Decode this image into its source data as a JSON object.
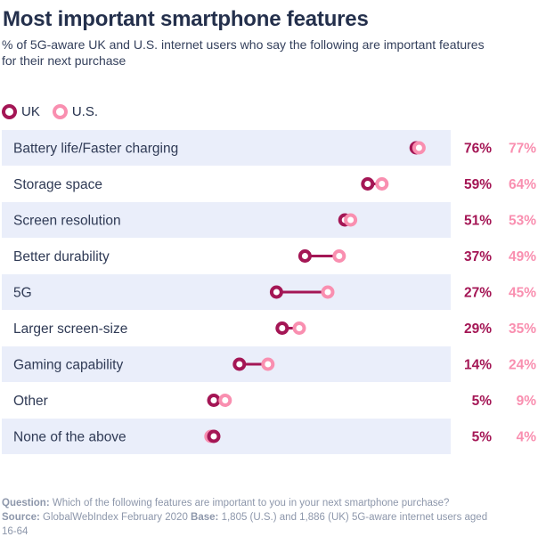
{
  "colors": {
    "uk": "#a41655",
    "us": "#f98fb0",
    "band": "#eaeefa",
    "text": "#2f3a55"
  },
  "chart_data": {
    "type": "dumbbell",
    "title": "Most important smartphone features",
    "subtitle": "% of 5G-aware UK and U.S. internet users who say the following are important features for their next purchase",
    "xlim": [
      0,
      100
    ],
    "legend_placement": "top-left",
    "series": [
      {
        "name": "UK",
        "values": [
          76,
          59,
          51,
          37,
          27,
          29,
          14,
          5,
          5
        ]
      },
      {
        "name": "U.S.",
        "values": [
          77,
          64,
          53,
          49,
          45,
          35,
          24,
          9,
          4
        ]
      }
    ],
    "categories": [
      "Battery life/Faster charging",
      "Storage space",
      "Screen resolution",
      "Better durability",
      "5G",
      "Larger screen-size",
      "Gaming capability",
      "Other",
      "None of the above"
    ],
    "value_labels_uk": [
      "76%",
      "59%",
      "51%",
      "37%",
      "27%",
      "29%",
      "14%",
      "5%",
      "5%"
    ],
    "value_labels_us": [
      "77%",
      "64%",
      "53%",
      "49%",
      "45%",
      "35%",
      "24%",
      "9%",
      "4%"
    ],
    "banded_rows": true
  },
  "legend": {
    "uk_label": "UK",
    "us_label": "U.S."
  },
  "footnote": {
    "question_label": "Question:",
    "question_text": "Which of the following features are important to you in your next smartphone purchase?",
    "source_label": "Source:",
    "source_text": "GlobalWebIndex February 2020",
    "base_label": "Base:",
    "base_text": "1,805 (U.S.) and 1,886 (UK) 5G-aware internet users aged 16-64"
  }
}
